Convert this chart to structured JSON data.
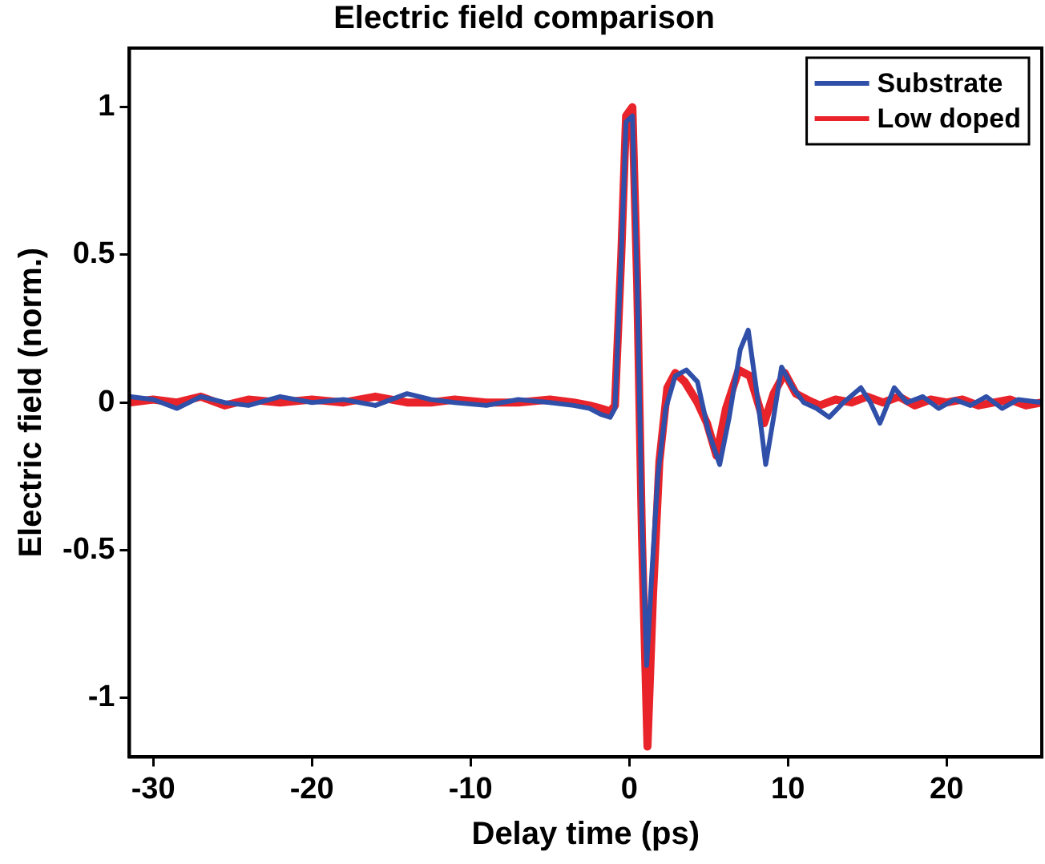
{
  "chart_data": {
    "type": "line",
    "title": "Electric field comparison",
    "xlabel": "Delay time (ps)",
    "ylabel": "Electric field (norm.)",
    "xlim": [
      -31.5,
      26
    ],
    "ylim": [
      -1.2,
      1.2
    ],
    "xticks": [
      -30,
      -20,
      -10,
      0,
      10,
      20
    ],
    "yticks": [
      -1,
      -0.5,
      0,
      0.5,
      1
    ],
    "grid": false,
    "legend": "top right",
    "marker": "none",
    "line_style": "solid",
    "series": [
      {
        "name": "Substrate",
        "color": "#2f4fa8",
        "x": [
          -31.5,
          -30,
          -28.5,
          -27,
          -25.5,
          -24,
          -22,
          -20,
          -18,
          -16,
          -14,
          -12.5,
          -11,
          -9,
          -7,
          -5,
          -3.5,
          -2.5,
          -1.8,
          -1.2,
          -0.9,
          -0.5,
          -0.2,
          0.2,
          0.5,
          0.8,
          1.1,
          1.4,
          1.8,
          2.3,
          2.9,
          3.6,
          4.3,
          5,
          5.7,
          6.3,
          7,
          7.5,
          8,
          8.6,
          9.1,
          9.6,
          10.3,
          11,
          11.8,
          12.6,
          13.5,
          14.6,
          15.2,
          15.8,
          16.7,
          17.5,
          18.5,
          19.5,
          20.5,
          21.5,
          22.5,
          23.5,
          24.5,
          26
        ],
        "values": [
          0.02,
          0.01,
          -0.02,
          0.02,
          0,
          -0.01,
          0.02,
          0,
          0.01,
          -0.01,
          0.03,
          0.01,
          0,
          -0.01,
          0.01,
          0,
          -0.01,
          -0.02,
          -0.04,
          -0.05,
          -0.02,
          0.5,
          0.95,
          0.97,
          0.4,
          -0.4,
          -0.89,
          -0.6,
          -0.25,
          -0.02,
          0.09,
          0.11,
          0.07,
          -0.1,
          -0.21,
          -0.05,
          0.18,
          0.245,
          0.05,
          -0.21,
          -0.05,
          0.12,
          0.05,
          0,
          -0.02,
          -0.05,
          0,
          0.05,
          0,
          -0.07,
          0.05,
          0,
          0.02,
          -0.02,
          0.01,
          -0.01,
          0.02,
          -0.02,
          0.01,
          0
        ]
      },
      {
        "name": "Low doped",
        "color": "#e8232a",
        "x": [
          -31.5,
          -30,
          -28.5,
          -27,
          -25.5,
          -24,
          -22,
          -20,
          -18,
          -16,
          -14,
          -12.5,
          -11,
          -9,
          -7,
          -5,
          -3.5,
          -2.5,
          -1.8,
          -1.2,
          -0.9,
          -0.5,
          -0.2,
          0.2,
          0.5,
          0.8,
          1.15,
          1.5,
          1.9,
          2.4,
          2.9,
          3.5,
          4.3,
          4.9,
          5.5,
          6.1,
          6.9,
          7.6,
          8,
          8.5,
          9.1,
          9.8,
          10.5,
          11.2,
          12,
          13,
          14,
          15,
          16,
          17,
          18,
          19,
          20,
          21,
          22,
          23,
          24,
          25,
          26
        ],
        "values": [
          0,
          0.01,
          0,
          0.02,
          -0.01,
          0.01,
          0,
          0.01,
          0,
          0.02,
          0,
          0,
          0.01,
          0,
          0,
          0.01,
          0,
          -0.01,
          -0.02,
          -0.03,
          -0.01,
          0.5,
          0.97,
          1,
          0.4,
          -0.45,
          -1.165,
          -0.65,
          -0.2,
          0.05,
          0.1,
          0.07,
          0,
          -0.07,
          -0.18,
          -0.02,
          0.11,
          0.09,
          0.02,
          -0.07,
          0.03,
          0.1,
          0.03,
          0.01,
          -0.01,
          0.01,
          0,
          0.02,
          0,
          0.02,
          -0.01,
          0.01,
          0,
          0.01,
          -0.01,
          0,
          0.01,
          -0.01,
          0
        ]
      }
    ]
  }
}
